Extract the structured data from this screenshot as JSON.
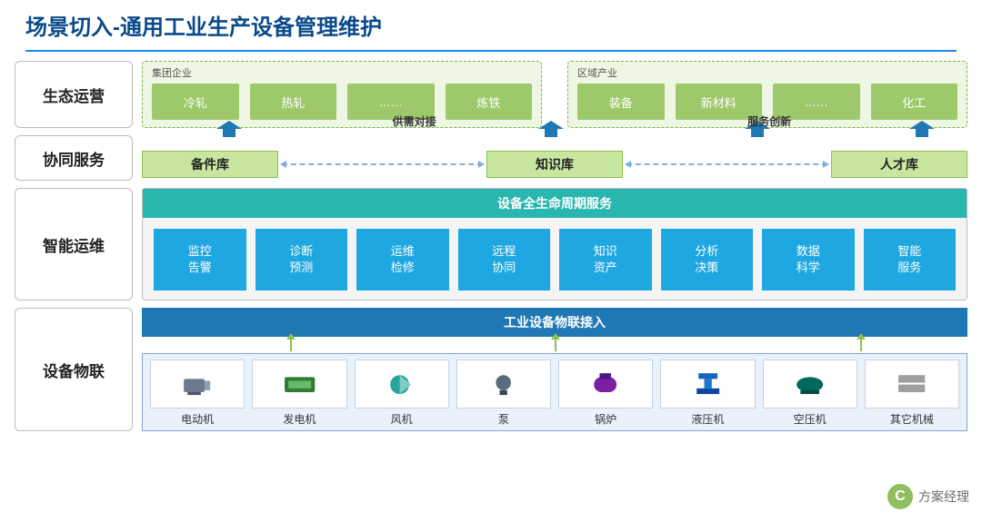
{
  "title": "场景切入-通用工业生产设备管理维护",
  "colors": {
    "title_text": "#0a4a8a",
    "title_underline": "#1e88e5",
    "row_border": "#bdbdbd",
    "eco_border": "#7cb342",
    "eco_bg": "#eef6e4",
    "eco_item_bg": "#9ec96b",
    "collab_box_bg": "#c8e6a0",
    "collab_box_border": "#8bc34a",
    "dash_blue": "#7fb0dd",
    "ops_header_bg": "#29b6ae",
    "ops_item_bg": "#1ea7e0",
    "iot_header_bg": "#1f78b4",
    "iot_panel_bg": "#e9f1fa",
    "iot_panel_border": "#7fa8d4",
    "up_arrow_fill": "#1f78b4",
    "green_arrow": "#8bc34a"
  },
  "rows": {
    "ecology": {
      "label": "生态运营",
      "groups": [
        {
          "title": "集团企业",
          "items": [
            "冷轧",
            "热轧",
            "……",
            "炼铁"
          ]
        },
        {
          "title": "区域产业",
          "items": [
            "装备",
            "新材料",
            "……",
            "化工"
          ]
        }
      ]
    },
    "collab": {
      "label": "协同服务",
      "inline_labels": [
        "供需对接",
        "服务创新"
      ],
      "boxes": [
        "备件库",
        "知识库",
        "人才库"
      ],
      "up_arrow_positions_pct": [
        9,
        48,
        73,
        93
      ],
      "inline_label_positions_pct": [
        33,
        76
      ]
    },
    "ops": {
      "label": "智能运维",
      "header": "设备全生命周期服务",
      "items": [
        "监控\n告警",
        "诊断\n预测",
        "运维\n检修",
        "远程\n协同",
        "知识\n资产",
        "分析\n决策",
        "数据\n科学",
        "智能\n服务"
      ]
    },
    "iot": {
      "label": "设备物联",
      "header": "工业设备物联接入",
      "green_arrow_positions_pct": [
        18,
        50,
        87
      ],
      "devices": [
        "电动机",
        "发电机",
        "风机",
        "泵",
        "锅炉",
        "液压机",
        "空压机",
        "其它机械"
      ]
    }
  },
  "watermark": {
    "icon_text": "C",
    "text": "方案经理"
  }
}
